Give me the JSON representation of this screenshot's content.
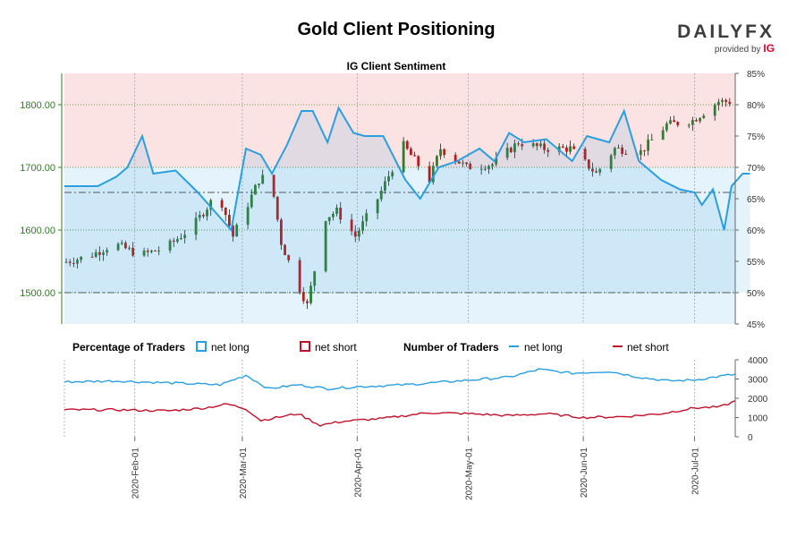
{
  "header": {
    "title": "Gold Client Positioning",
    "brand_word": "DAILYFX",
    "brand_sub": "provided by",
    "brand_ig": "IG"
  },
  "colors": {
    "long": "#2a9fe0",
    "short": "#c0102a",
    "bull_candle": "#2e7d32",
    "bear_candle": "#b71c1c",
    "short_zone": "#fbe3e3",
    "long_zone": "#e5f3fc",
    "price_axis": "#2e7d1e"
  },
  "chart_data": [
    {
      "type": "candlestick+line",
      "title": "IG Client Sentiment",
      "price_axis": {
        "side": "left",
        "min": 1450,
        "max": 1850,
        "ticks": [
          1500,
          1600,
          1700,
          1800
        ],
        "tick_labels": [
          "1500.00",
          "1600.00",
          "1700.00",
          "1800.00"
        ]
      },
      "sentiment_axis": {
        "side": "right",
        "min": 45,
        "max": 85,
        "ticks": [
          45,
          50,
          55,
          60,
          65,
          70,
          75,
          80,
          85
        ],
        "tick_labels": [
          "45%",
          "50%",
          "55%",
          "60%",
          "65%",
          "70%",
          "75%",
          "80%",
          "85%"
        ]
      },
      "reference_lines": [
        50,
        66
      ],
      "x_range": [
        "2020-01-13",
        "2020-07-12"
      ],
      "x_ticks": [
        "2020-Feb-01",
        "2020-Mar-01",
        "2020-Apr-01",
        "2020-May-01",
        "2020-Jun-01",
        "2020-Jul-01"
      ],
      "price_key": [
        [
          "2020-01-13",
          1548
        ],
        [
          "2020-01-20",
          1558
        ],
        [
          "2020-01-27",
          1578
        ],
        [
          "2020-02-03",
          1560
        ],
        [
          "2020-02-10",
          1572
        ],
        [
          "2020-02-17",
          1605
        ],
        [
          "2020-02-24",
          1660
        ],
        [
          "2020-02-28",
          1590
        ],
        [
          "2020-03-06",
          1680
        ],
        [
          "2020-03-09",
          1690
        ],
        [
          "2020-03-12",
          1580
        ],
        [
          "2020-03-16",
          1520
        ],
        [
          "2020-03-19",
          1480
        ],
        [
          "2020-03-24",
          1620
        ],
        [
          "2020-03-27",
          1630
        ],
        [
          "2020-04-01",
          1590
        ],
        [
          "2020-04-07",
          1650
        ],
        [
          "2020-04-14",
          1735
        ],
        [
          "2020-04-21",
          1680
        ],
        [
          "2020-04-24",
          1730
        ],
        [
          "2020-05-01",
          1700
        ],
        [
          "2020-05-08",
          1705
        ],
        [
          "2020-05-15",
          1740
        ],
        [
          "2020-05-22",
          1730
        ],
        [
          "2020-05-29",
          1730
        ],
        [
          "2020-06-05",
          1690
        ],
        [
          "2020-06-10",
          1730
        ],
        [
          "2020-06-17",
          1725
        ],
        [
          "2020-06-24",
          1768
        ],
        [
          "2020-07-01",
          1775
        ],
        [
          "2020-07-08",
          1805
        ],
        [
          "2020-07-12",
          1805
        ]
      ],
      "net_long_pct_key": [
        [
          "2020-01-13",
          67
        ],
        [
          "2020-01-22",
          67
        ],
        [
          "2020-01-27",
          68.5
        ],
        [
          "2020-01-30",
          70
        ],
        [
          "2020-02-03",
          75
        ],
        [
          "2020-02-06",
          69
        ],
        [
          "2020-02-12",
          69.5
        ],
        [
          "2020-02-18",
          66
        ],
        [
          "2020-02-24",
          62
        ],
        [
          "2020-02-27",
          60
        ],
        [
          "2020-03-02",
          73
        ],
        [
          "2020-03-06",
          72
        ],
        [
          "2020-03-09",
          69
        ],
        [
          "2020-03-13",
          73.5
        ],
        [
          "2020-03-17",
          79
        ],
        [
          "2020-03-20",
          79
        ],
        [
          "2020-03-24",
          74
        ],
        [
          "2020-03-27",
          79.5
        ],
        [
          "2020-03-31",
          75.5
        ],
        [
          "2020-04-03",
          75
        ],
        [
          "2020-04-08",
          75
        ],
        [
          "2020-04-14",
          68
        ],
        [
          "2020-04-18",
          65
        ],
        [
          "2020-04-23",
          70
        ],
        [
          "2020-04-28",
          71
        ],
        [
          "2020-05-04",
          73
        ],
        [
          "2020-05-08",
          71
        ],
        [
          "2020-05-12",
          75.5
        ],
        [
          "2020-05-16",
          74
        ],
        [
          "2020-05-22",
          74.5
        ],
        [
          "2020-05-29",
          71
        ],
        [
          "2020-06-02",
          75
        ],
        [
          "2020-06-08",
          74
        ],
        [
          "2020-06-12",
          79
        ],
        [
          "2020-06-16",
          71
        ],
        [
          "2020-06-22",
          68
        ],
        [
          "2020-06-27",
          66.5
        ],
        [
          "2020-07-01",
          66
        ],
        [
          "2020-07-03",
          64
        ],
        [
          "2020-07-06",
          66.5
        ],
        [
          "2020-07-09",
          60
        ],
        [
          "2020-07-11",
          67
        ],
        [
          "2020-07-14",
          69
        ],
        [
          "2020-07-16",
          69
        ]
      ]
    },
    {
      "type": "line",
      "title": "",
      "legend": {
        "pct_label": "Percentage of Traders",
        "num_label": "Number of Traders",
        "long": "net long",
        "short": "net short"
      },
      "y_axis": {
        "side": "right",
        "min": 0,
        "max": 4000,
        "ticks": [
          0,
          1000,
          2000,
          3000,
          4000
        ],
        "tick_labels": [
          "0",
          "1000",
          "2000",
          "3000",
          "4000"
        ]
      },
      "series": [
        {
          "name": "net long",
          "values_key": [
            [
              "2020-01-13",
              2850
            ],
            [
              "2020-01-27",
              2900
            ],
            [
              "2020-02-10",
              2800
            ],
            [
              "2020-02-24",
              2700
            ],
            [
              "2020-03-02",
              3200
            ],
            [
              "2020-03-08",
              2500
            ],
            [
              "2020-03-16",
              2700
            ],
            [
              "2020-03-24",
              2500
            ],
            [
              "2020-04-01",
              2600
            ],
            [
              "2020-04-14",
              2700
            ],
            [
              "2020-04-28",
              2900
            ],
            [
              "2020-05-12",
              3100
            ],
            [
              "2020-05-20",
              3500
            ],
            [
              "2020-05-29",
              3300
            ],
            [
              "2020-06-08",
              3400
            ],
            [
              "2020-06-16",
              3100
            ],
            [
              "2020-06-24",
              2900
            ],
            [
              "2020-07-01",
              2950
            ],
            [
              "2020-07-10",
              3200
            ],
            [
              "2020-07-16",
              3300
            ]
          ]
        },
        {
          "name": "net short",
          "values_key": [
            [
              "2020-01-13",
              1400
            ],
            [
              "2020-01-27",
              1400
            ],
            [
              "2020-02-10",
              1350
            ],
            [
              "2020-02-20",
              1500
            ],
            [
              "2020-02-26",
              1700
            ],
            [
              "2020-03-02",
              1450
            ],
            [
              "2020-03-06",
              850
            ],
            [
              "2020-03-16",
              1200
            ],
            [
              "2020-03-22",
              600
            ],
            [
              "2020-03-28",
              800
            ],
            [
              "2020-04-08",
              950
            ],
            [
              "2020-04-20",
              1250
            ],
            [
              "2020-05-01",
              1200
            ],
            [
              "2020-05-12",
              1100
            ],
            [
              "2020-05-22",
              1200
            ],
            [
              "2020-06-01",
              1000
            ],
            [
              "2020-06-12",
              1050
            ],
            [
              "2020-06-22",
              1200
            ],
            [
              "2020-07-01",
              1500
            ],
            [
              "2020-07-08",
              1550
            ],
            [
              "2020-07-12",
              1850
            ],
            [
              "2020-07-16",
              1450
            ]
          ]
        }
      ]
    }
  ]
}
